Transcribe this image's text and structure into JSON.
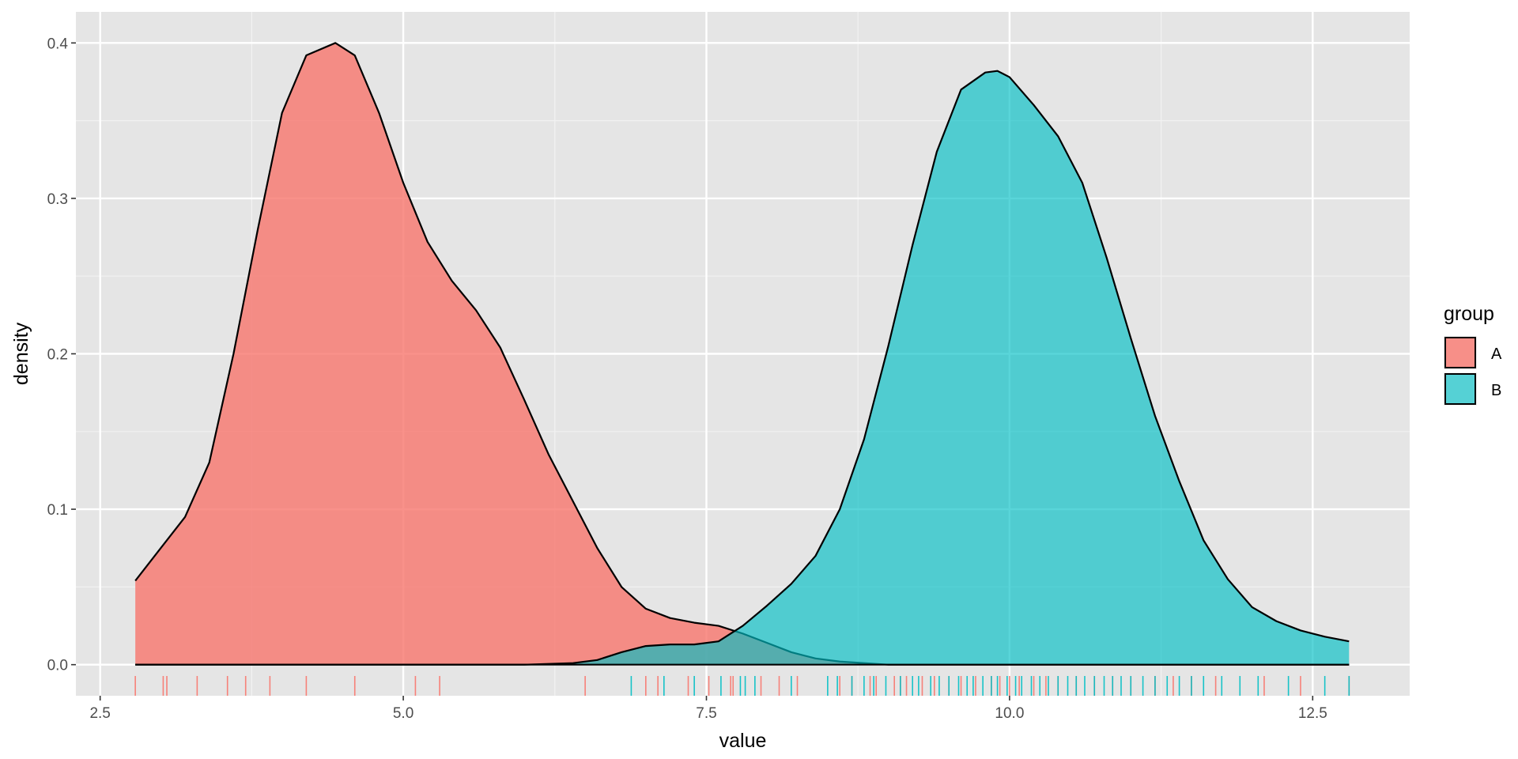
{
  "chart_data": {
    "type": "area",
    "subtype": "density",
    "xlabel": "value",
    "ylabel": "density",
    "xlim": [
      2.3,
      13.3
    ],
    "ylim": [
      -0.02,
      0.42
    ],
    "xticks": [
      2.5,
      5.0,
      7.5,
      10.0,
      12.5
    ],
    "xtick_labels": [
      "2.5",
      "5.0",
      "7.5",
      "10.0",
      "12.5"
    ],
    "yticks": [
      0.0,
      0.1,
      0.2,
      0.3,
      0.4
    ],
    "ytick_labels": [
      "0.0",
      "0.1",
      "0.2",
      "0.3",
      "0.4"
    ],
    "grid": true,
    "legend": {
      "title": "group",
      "position": "right"
    },
    "series": [
      {
        "name": "A",
        "color": "#F8766D",
        "fill_opacity": 0.8,
        "x": [
          2.79,
          3.0,
          3.2,
          3.4,
          3.6,
          3.8,
          4.0,
          4.2,
          4.44,
          4.6,
          4.8,
          5.0,
          5.2,
          5.4,
          5.6,
          5.8,
          6.0,
          6.2,
          6.4,
          6.6,
          6.8,
          7.0,
          7.2,
          7.4,
          7.6,
          7.8,
          8.0,
          8.2,
          8.4,
          8.6,
          8.8,
          9.0,
          9.5,
          10.0,
          11.0,
          12.8
        ],
        "y": [
          0.054,
          0.075,
          0.095,
          0.13,
          0.2,
          0.28,
          0.355,
          0.392,
          0.4,
          0.392,
          0.355,
          0.31,
          0.272,
          0.247,
          0.228,
          0.204,
          0.17,
          0.135,
          0.105,
          0.075,
          0.05,
          0.036,
          0.03,
          0.027,
          0.025,
          0.02,
          0.014,
          0.008,
          0.004,
          0.002,
          0.001,
          0.0,
          0.0,
          0.0,
          0.0,
          0.0
        ],
        "rug": [
          2.79,
          3.02,
          3.05,
          3.3,
          3.55,
          3.7,
          3.9,
          4.2,
          4.6,
          5.1,
          5.3,
          6.5,
          7.0,
          7.1,
          7.35,
          7.52,
          7.7,
          7.72,
          7.95,
          8.1,
          8.25,
          8.6,
          8.7,
          8.85,
          8.9,
          9.05,
          9.1,
          9.15,
          9.28,
          9.38,
          9.5,
          9.6,
          9.72,
          9.85,
          9.92,
          10.0,
          10.08,
          10.2,
          10.3,
          10.4,
          10.55,
          10.7,
          10.85,
          11.0,
          11.2,
          11.35,
          11.5,
          11.7,
          12.1,
          12.4,
          12.8
        ]
      },
      {
        "name": "B",
        "color": "#00BFC4",
        "fill_opacity": 0.65,
        "x": [
          2.79,
          5.0,
          6.0,
          6.4,
          6.6,
          6.8,
          7.0,
          7.2,
          7.4,
          7.6,
          7.8,
          8.0,
          8.2,
          8.4,
          8.6,
          8.8,
          9.0,
          9.2,
          9.4,
          9.6,
          9.8,
          9.9,
          10.0,
          10.2,
          10.4,
          10.6,
          10.8,
          11.0,
          11.2,
          11.4,
          11.6,
          11.8,
          12.0,
          12.2,
          12.4,
          12.6,
          12.8
        ],
        "y": [
          0.0,
          0.0,
          0.0,
          0.001,
          0.003,
          0.008,
          0.012,
          0.013,
          0.013,
          0.015,
          0.025,
          0.038,
          0.052,
          0.07,
          0.1,
          0.145,
          0.205,
          0.27,
          0.33,
          0.37,
          0.381,
          0.382,
          0.378,
          0.36,
          0.34,
          0.31,
          0.262,
          0.21,
          0.16,
          0.118,
          0.08,
          0.055,
          0.037,
          0.028,
          0.022,
          0.018,
          0.015
        ],
        "rug": [
          6.88,
          7.15,
          7.4,
          7.62,
          7.78,
          7.82,
          7.9,
          8.2,
          8.5,
          8.58,
          8.7,
          8.8,
          8.88,
          8.98,
          9.1,
          9.2,
          9.25,
          9.35,
          9.42,
          9.5,
          9.58,
          9.65,
          9.7,
          9.78,
          9.85,
          9.9,
          9.98,
          10.05,
          10.1,
          10.18,
          10.25,
          10.32,
          10.4,
          10.48,
          10.55,
          10.62,
          10.7,
          10.78,
          10.85,
          10.92,
          11.0,
          11.1,
          11.2,
          11.3,
          11.4,
          11.5,
          11.6,
          11.75,
          11.9,
          12.05,
          12.3,
          12.6,
          12.8
        ]
      }
    ]
  }
}
